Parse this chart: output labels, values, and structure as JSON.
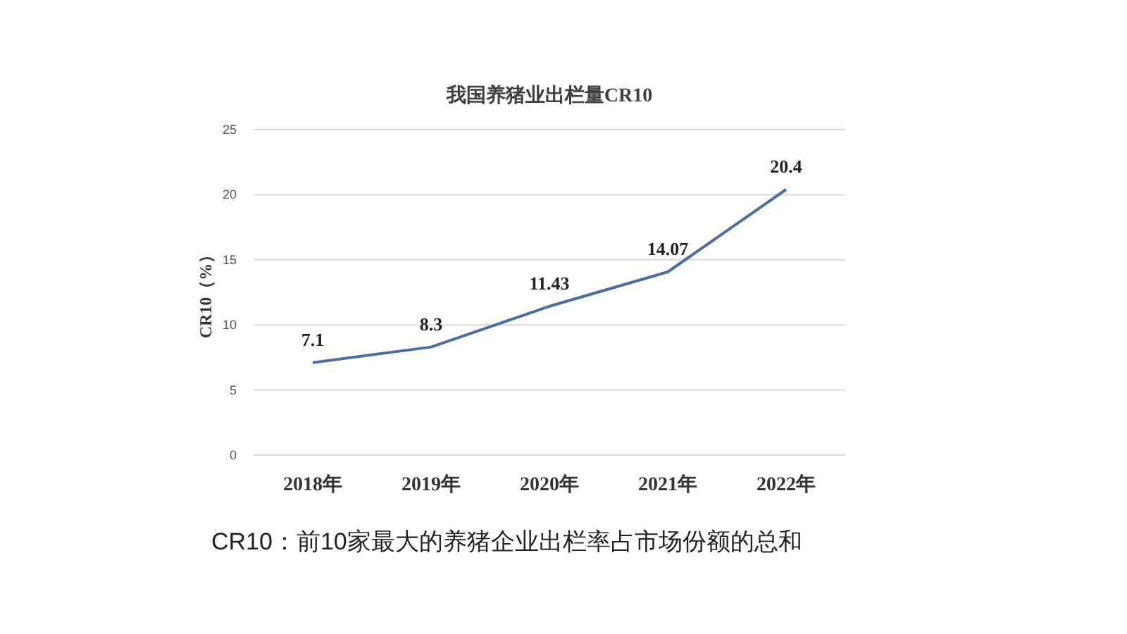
{
  "chart_data": {
    "type": "line",
    "title": "我国养猪业出栏量CR10",
    "ylabel": "CR10（%）",
    "categories": [
      "2018年",
      "2019年",
      "2020年",
      "2021年",
      "2022年"
    ],
    "series": [
      {
        "color": "#4a6fa5",
        "values": [
          7.1,
          8.3,
          11.43,
          14.07,
          20.4
        ]
      }
    ],
    "ylim": [
      0,
      25
    ],
    "yticks": [
      0,
      5,
      10,
      15,
      20,
      25
    ],
    "grid": "y",
    "data_labels": true,
    "annotations": [
      "CR10：前10家最大的养猪企业出栏率占市场份额的总和"
    ]
  }
}
